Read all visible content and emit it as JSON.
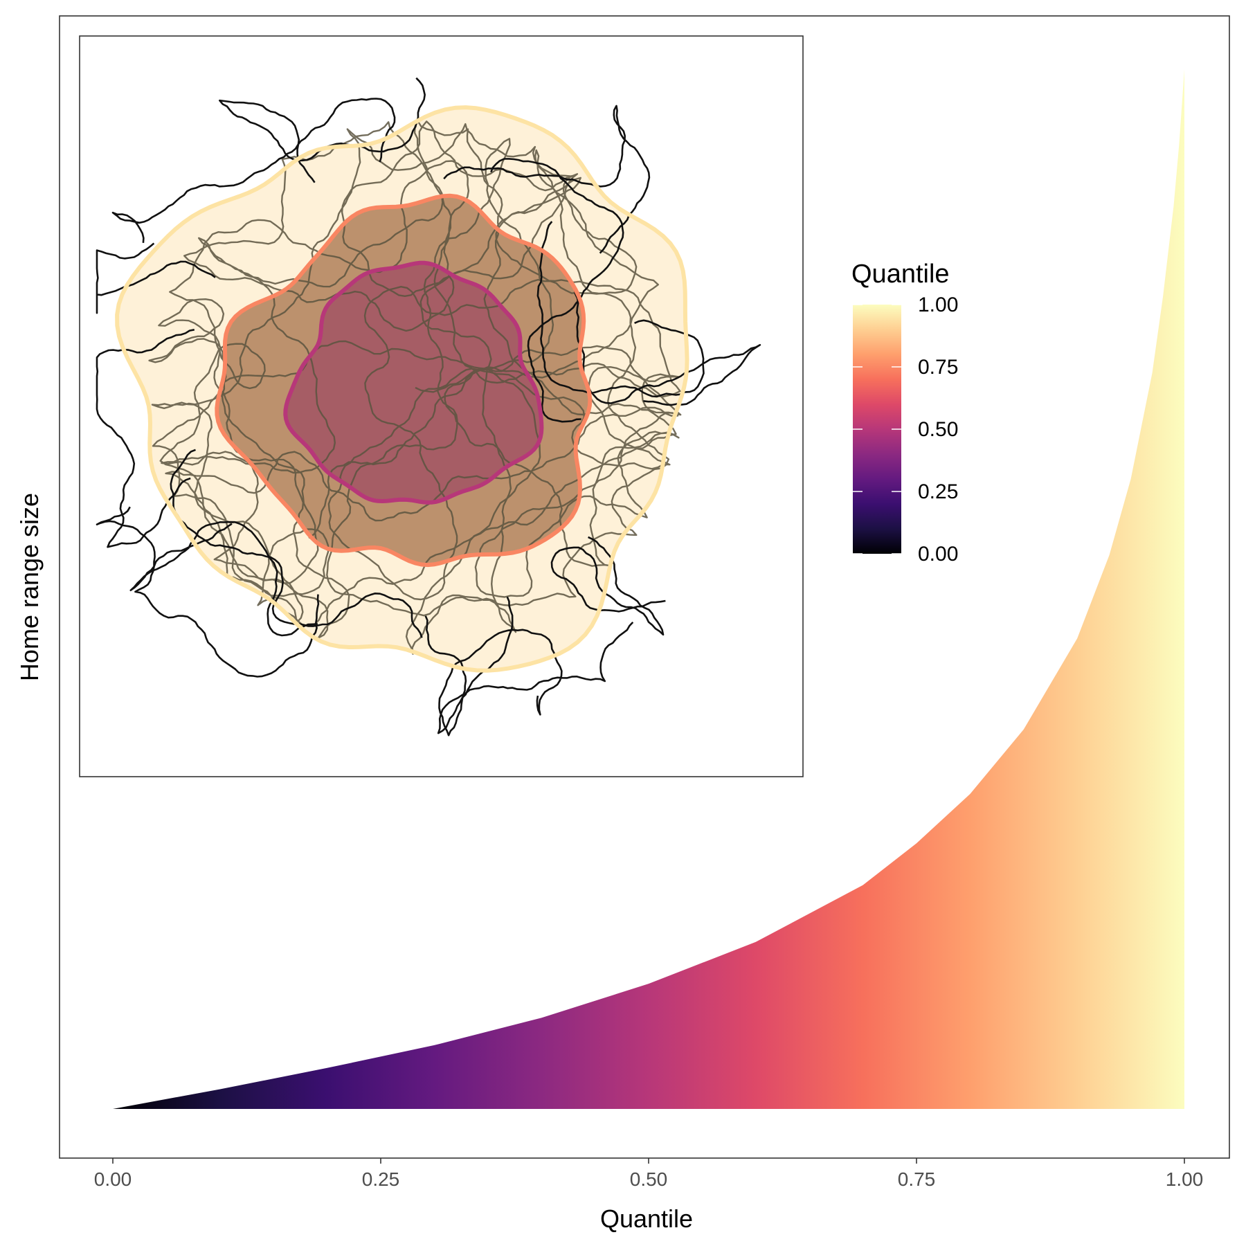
{
  "chart_data": [
    {
      "type": "area",
      "xlabel": "Quantile",
      "ylabel": "Home range size",
      "xlim": [
        -0.035,
        1.035
      ],
      "xticks": [
        0,
        0.25,
        0.5,
        0.75,
        1
      ],
      "xtick_labels": [
        "0.00",
        "0.25",
        "0.50",
        "0.75",
        "1.00"
      ],
      "yticks_shown": false,
      "grid": false,
      "fill": "gradient by quantile",
      "x": [
        0,
        0.1,
        0.2,
        0.3,
        0.4,
        0.5,
        0.6,
        0.7,
        0.75,
        0.8,
        0.85,
        0.9,
        0.93,
        0.95,
        0.97,
        0.98,
        0.99,
        0.995,
        1.0
      ],
      "y": [
        0,
        2.6,
        5.4,
        8.4,
        12.0,
        16.5,
        22.0,
        29.5,
        35.0,
        41.5,
        50.0,
        62.0,
        73.0,
        83.0,
        97.0,
        107.0,
        119.0,
        127.0,
        137.0
      ]
    },
    {
      "type": "inset-map",
      "content": "animal movement track with home range contour isopleths",
      "contour_levels": [
        0.5,
        0.75,
        1.0
      ],
      "legend": {
        "title": "Quantile",
        "position": "right",
        "tick_labels": [
          "1.00",
          "0.75",
          "0.50",
          "0.25",
          "0.00"
        ],
        "range": [
          0,
          1
        ]
      }
    }
  ],
  "colors": {
    "magma": [
      "#000004",
      "#1c1044",
      "#3b0f70",
      "#641a80",
      "#8c2981",
      "#b73779",
      "#de4968",
      "#f7705c",
      "#fe9f6d",
      "#fecf92",
      "#fcfdbf"
    ],
    "track": "#111111",
    "track_dense": "#5b5440",
    "contour_050": "#b73779",
    "contour_075": "#f98662",
    "contour_100": "#fde3a4",
    "frame": "#333333"
  }
}
